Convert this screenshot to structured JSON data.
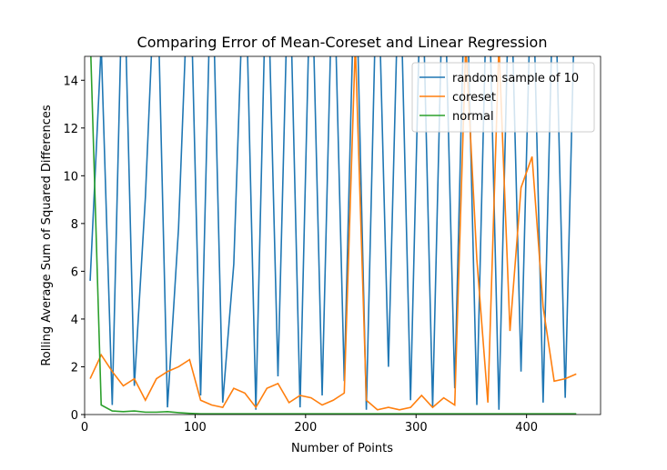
{
  "chart_data": {
    "type": "line",
    "title": "Comparing Error of Mean-Coreset and Linear Regression",
    "x_label": "Number of Points",
    "y_label": "Rolling Average Sum of Squared Differences",
    "x": [
      5,
      15,
      25,
      35,
      45,
      55,
      65,
      75,
      85,
      95,
      105,
      115,
      125,
      135,
      145,
      155,
      165,
      175,
      185,
      195,
      205,
      215,
      225,
      235,
      245,
      255,
      265,
      275,
      285,
      295,
      305,
      315,
      325,
      335,
      345,
      355,
      365,
      375,
      385,
      395,
      405,
      415,
      425,
      435,
      445
    ],
    "series": [
      {
        "name": "random sample of 10",
        "color": "#1f77b4",
        "values": [
          5.6,
          15.5,
          0.4,
          20,
          1.2,
          9.1,
          20,
          0.3,
          7.8,
          20,
          0.8,
          20,
          0.5,
          6.3,
          20,
          0.2,
          20,
          1.6,
          20,
          0.3,
          20,
          0.8,
          20,
          1.4,
          20,
          0.2,
          20,
          2.0,
          20,
          0.6,
          20,
          0.3,
          20,
          1.1,
          20,
          0.4,
          20,
          0.2,
          20,
          1.8,
          20,
          0.5,
          20,
          0.7,
          20
        ]
      },
      {
        "name": "coreset",
        "color": "#ff7f0e",
        "values": [
          1.5,
          2.5,
          1.8,
          1.2,
          1.5,
          0.6,
          1.5,
          1.8,
          2.0,
          2.3,
          0.6,
          0.4,
          0.3,
          1.1,
          0.9,
          0.3,
          1.1,
          1.3,
          0.5,
          0.8,
          0.7,
          0.4,
          0.6,
          0.9,
          15.5,
          0.6,
          0.2,
          0.3,
          0.2,
          0.3,
          0.8,
          0.3,
          0.7,
          0.4,
          15.5,
          6.5,
          0.5,
          15.5,
          3.5,
          9.5,
          10.8,
          4.5,
          1.4,
          1.5,
          1.7
        ]
      },
      {
        "name": "normal",
        "color": "#2ca02c",
        "values": [
          16,
          0.4,
          0.15,
          0.12,
          0.15,
          0.1,
          0.1,
          0.12,
          0.08,
          0.05,
          0.03,
          0.03,
          0.03,
          0.03,
          0.03,
          0.03,
          0.03,
          0.03,
          0.03,
          0.03,
          0.03,
          0.03,
          0.03,
          0.03,
          0.03,
          0.03,
          0.03,
          0.03,
          0.03,
          0.03,
          0.03,
          0.03,
          0.03,
          0.03,
          0.03,
          0.03,
          0.03,
          0.03,
          0.03,
          0.03,
          0.03,
          0.03,
          0.03,
          0.03,
          0.03
        ]
      }
    ],
    "xlim": [
      0,
      467
    ],
    "ylim": [
      0,
      15
    ],
    "xticks": [
      0,
      100,
      200,
      300,
      400
    ],
    "yticks": [
      0,
      2,
      4,
      6,
      8,
      10,
      12,
      14
    ],
    "legend": "upper right"
  }
}
